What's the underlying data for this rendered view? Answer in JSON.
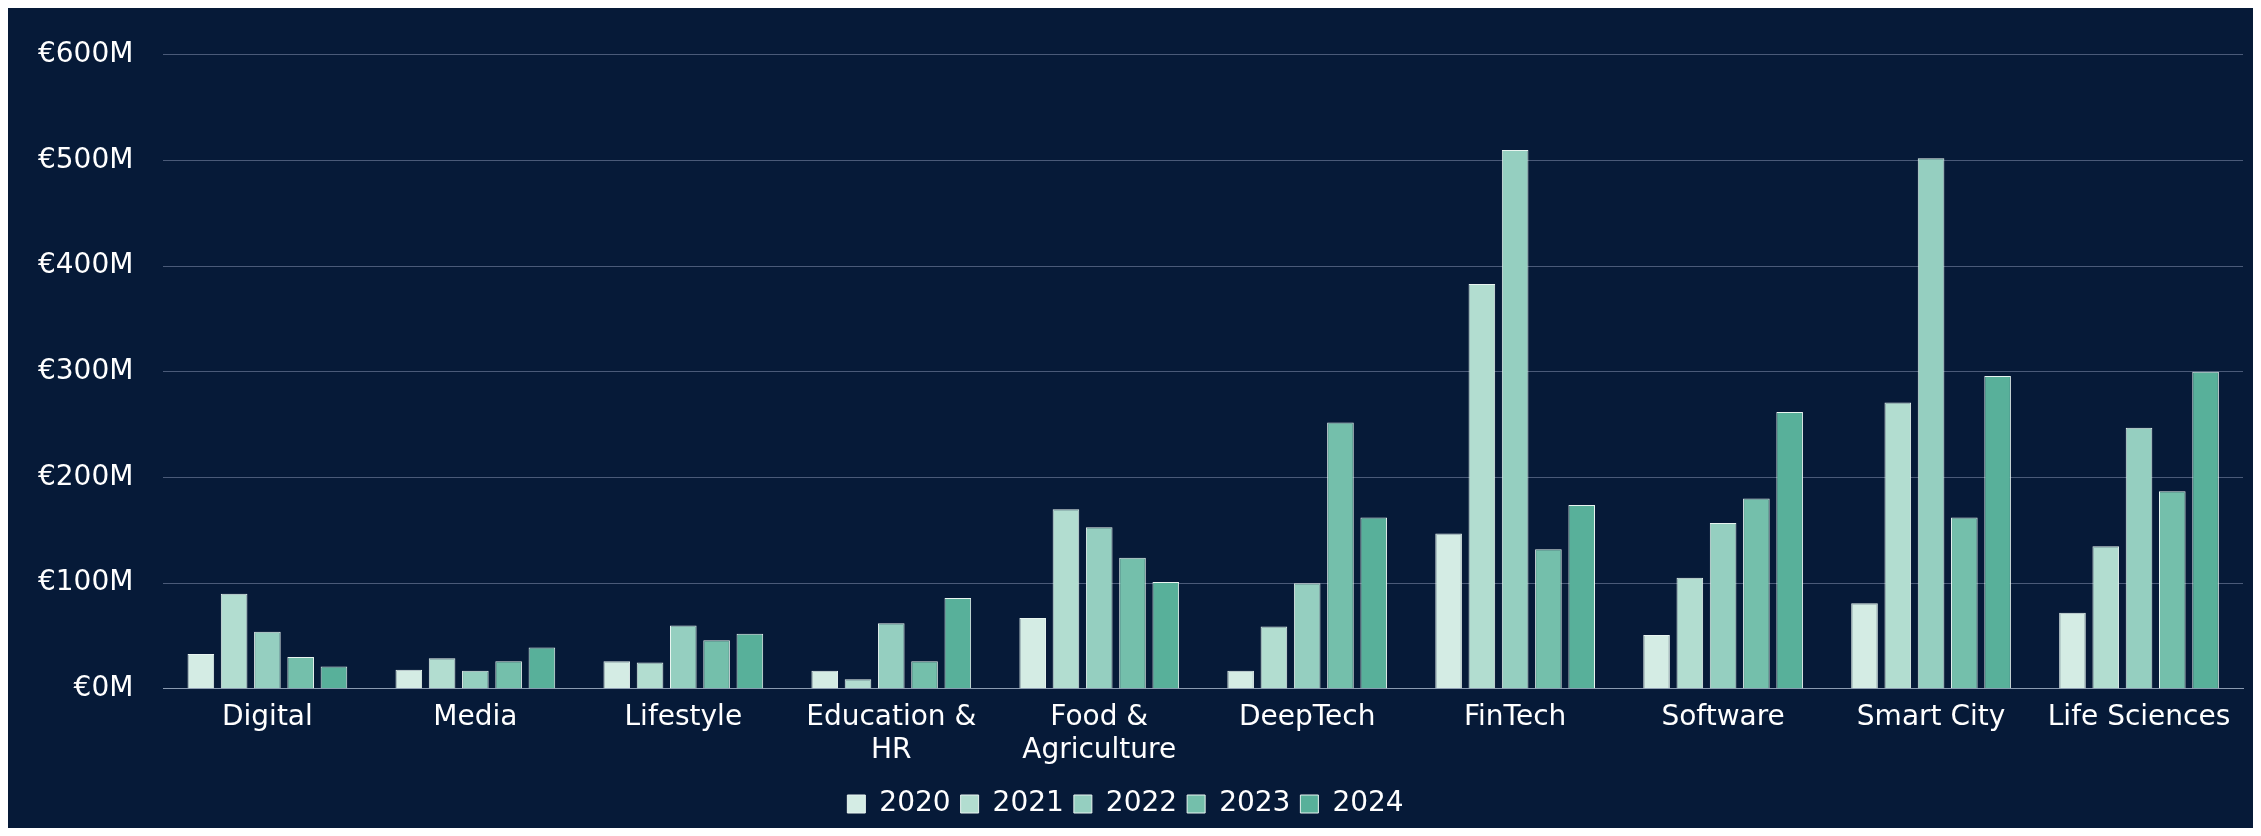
{
  "chart_data": {
    "type": "bar",
    "categories": [
      "Digital",
      "Media",
      "Lifestyle",
      "Education & HR",
      "Food & Agriculture",
      "DeepTech",
      "FinTech",
      "Software",
      "Smart City",
      "Life Sciences"
    ],
    "series": [
      {
        "name": "2020",
        "color": "#d4ece4",
        "values": [
          33,
          18,
          26,
          17,
          67,
          17,
          147,
          51,
          81,
          72
        ]
      },
      {
        "name": "2021",
        "color": "#b2ddd0",
        "values": [
          90,
          29,
          25,
          9,
          170,
          59,
          383,
          105,
          271,
          135
        ]
      },
      {
        "name": "2022",
        "color": "#95cfc0",
        "values": [
          54,
          17,
          60,
          62,
          153,
          100,
          510,
          157,
          502,
          247
        ]
      },
      {
        "name": "2023",
        "color": "#74bfab",
        "values": [
          30,
          26,
          46,
          26,
          124,
          252,
          132,
          180,
          162,
          187
        ]
      },
      {
        "name": "2024",
        "color": "#58b09a",
        "values": [
          21,
          39,
          52,
          86,
          101,
          162,
          174,
          262,
          296,
          300
        ]
      }
    ],
    "ylim": [
      0,
      600
    ],
    "yticks": [
      {
        "value": 0,
        "label": "€0M"
      },
      {
        "value": 100,
        "label": "€100M"
      },
      {
        "value": 200,
        "label": "€200M"
      },
      {
        "value": 300,
        "label": "€300M"
      },
      {
        "value": 400,
        "label": "€400M"
      },
      {
        "value": 500,
        "label": "€500M"
      },
      {
        "value": 600,
        "label": "€600M"
      }
    ],
    "grid": "y",
    "legend": "bottom"
  }
}
